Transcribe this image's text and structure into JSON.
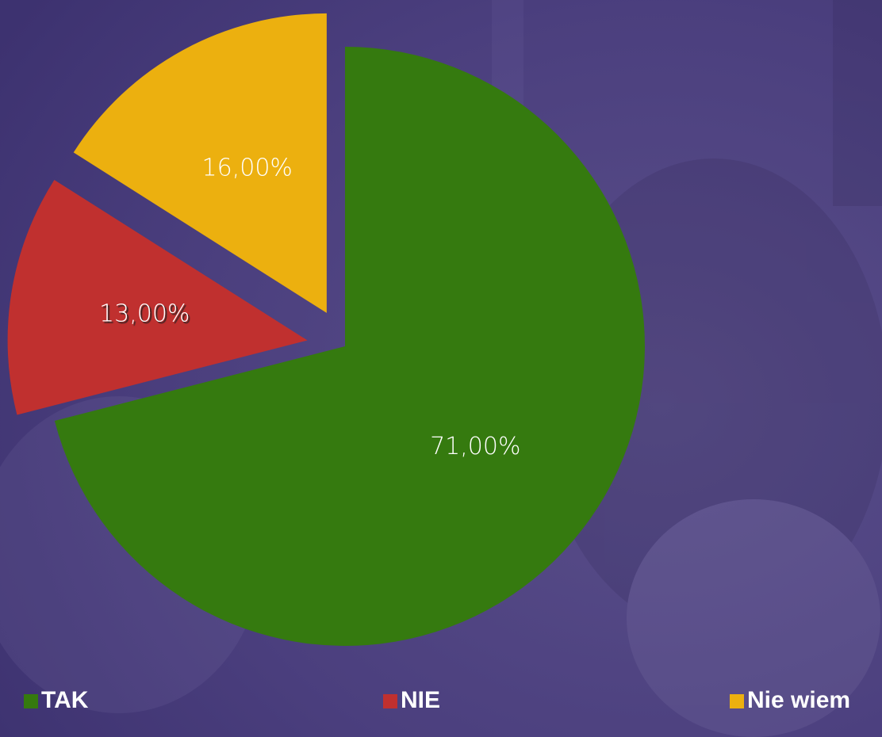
{
  "chart_data": {
    "type": "pie",
    "categories": [
      "TAK",
      "NIE",
      "Nie wiem"
    ],
    "values": [
      71,
      13,
      16
    ],
    "value_labels": [
      "71,00%",
      "13,00%",
      "16,00%"
    ],
    "colors": [
      "#357a0f",
      "#c0302f",
      "#ecb00f"
    ],
    "legend": "bottom"
  }
}
